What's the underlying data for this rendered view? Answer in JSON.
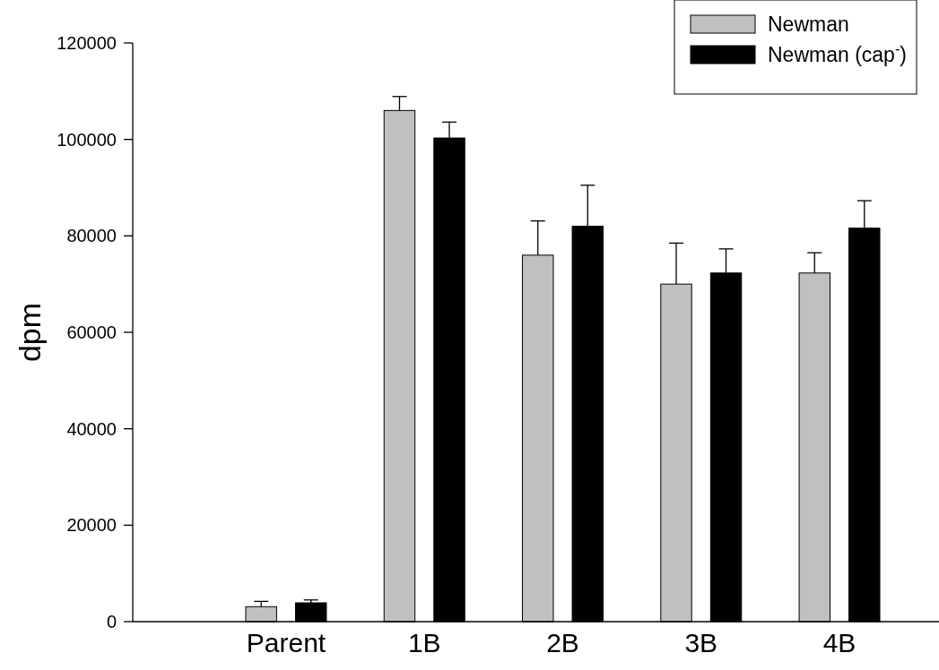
{
  "chart_data": {
    "type": "bar",
    "ylabel": "dpm",
    "categories": [
      "Parent",
      "1B",
      "2B",
      "3B",
      "4B"
    ],
    "series": [
      {
        "name": "Newman",
        "color": "#c0c0c0",
        "values": [
          3100,
          106000,
          76000,
          70000,
          72300
        ],
        "errors": [
          1100,
          2900,
          7100,
          8500,
          4200
        ]
      },
      {
        "name": "Newman (cap$^{-}$)",
        "color": "#000000",
        "values": [
          3900,
          100300,
          82000,
          72300,
          81600
        ],
        "errors": [
          600,
          3300,
          8500,
          5000,
          5700
        ]
      }
    ],
    "ylim": [
      0,
      120000
    ],
    "yticks": [
      0,
      20000,
      40000,
      60000,
      80000,
      100000,
      120000
    ],
    "legend": "top right"
  }
}
